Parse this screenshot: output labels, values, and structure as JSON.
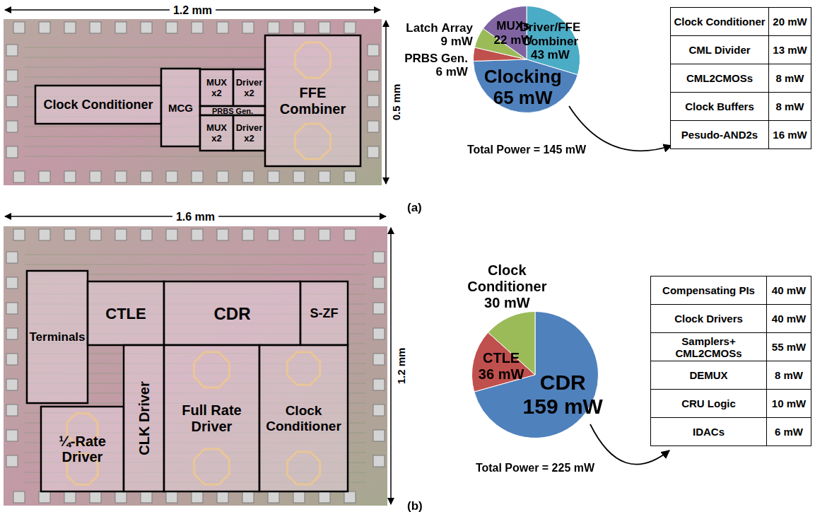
{
  "panel_labels": [
    "(a)",
    "(b)"
  ],
  "die_photos": [
    {
      "width_label": "1.2 mm",
      "height_label": "0.5 mm",
      "blocks": [
        "Clock Conditioner",
        "MCG",
        "MUX x2",
        "Driver x2",
        "PRBS Gen.",
        "MUX x2",
        "Driver x2",
        "FFE Combiner"
      ]
    },
    {
      "width_label": "1.6 mm",
      "height_label": "1.2 mm",
      "blocks": [
        "Terminals",
        "CTLE",
        "CDR",
        "S-ZF",
        "¼-Rate Driver",
        "CLK Driver",
        "Full Rate Driver",
        "Clock Conditioner"
      ]
    }
  ],
  "chart_data": [
    {
      "type": "pie",
      "title": "Total Power = 145 mW",
      "categories": [
        "Driver/FFE Combiner",
        "Clocking",
        "PRBS Gen.",
        "Latch Array",
        "MUXs"
      ],
      "values": [
        43,
        65,
        6,
        9,
        22
      ],
      "value_labels": [
        "43 mW",
        "65 mW",
        "6 mW",
        "9 mW",
        "22 mW"
      ],
      "colors": [
        "#4bacc6",
        "#4f81bd",
        "#c0504d",
        "#9bbb59",
        "#8064a2"
      ],
      "data_labels": true
    },
    {
      "type": "pie",
      "title": "Total Power = 225 mW",
      "categories": [
        "CDR",
        "CTLE",
        "Clock Conditioner"
      ],
      "values": [
        159,
        36,
        30
      ],
      "value_labels": [
        "159 mW",
        "36 mW",
        "30 mW"
      ],
      "colors": [
        "#4f81bd",
        "#c0504d",
        "#9bbb59"
      ],
      "data_labels": true
    }
  ],
  "tables": [
    {
      "rows": [
        [
          "Clock Conditioner",
          "20 mW"
        ],
        [
          "CML Divider",
          "13 mW"
        ],
        [
          "CML2CMOSs",
          "8 mW"
        ],
        [
          "Clock Buffers",
          "8 mW"
        ],
        [
          "Pesudo-AND2s",
          "16 mW"
        ]
      ]
    },
    {
      "rows": [
        [
          "Compensating PIs",
          "40 mW"
        ],
        [
          "Clock Drivers",
          "40 mW"
        ],
        [
          "Samplers+ CML2CMOSs",
          "55 mW"
        ],
        [
          "DEMUX",
          "8 mW"
        ],
        [
          "CRU Logic",
          "10 mW"
        ],
        [
          "IDACs",
          "6 mW"
        ]
      ]
    }
  ]
}
